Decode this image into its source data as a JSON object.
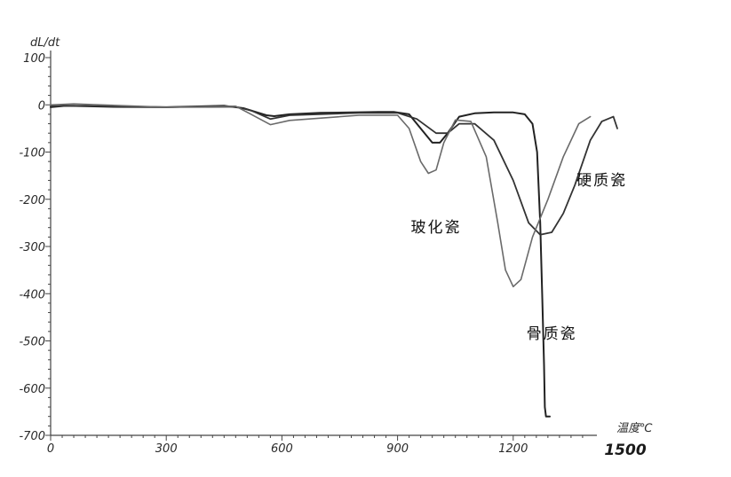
{
  "chart_data": {
    "type": "line",
    "ylabel": "dL/dt",
    "xlabel": "温度℃",
    "xlim": [
      0,
      1500
    ],
    "ylim": [
      -700,
      100
    ],
    "x_ticks": [
      "0",
      "300",
      "600",
      "900",
      "1200",
      "1500"
    ],
    "y_ticks": [
      "100",
      "0",
      "-100",
      "-200",
      "-300",
      "-400",
      "-500",
      "-600",
      "-700"
    ],
    "colors": {
      "axis": "#444444",
      "bone": "#222222",
      "hard": "#333333",
      "glass": "#6a6a6a"
    },
    "series": [
      {
        "name": "骨质瓷",
        "x": [
          0,
          40,
          150,
          300,
          450,
          500,
          560,
          580,
          620,
          700,
          850,
          890,
          930,
          960,
          990,
          1010,
          1030,
          1060,
          1100,
          1150,
          1200,
          1230,
          1250,
          1262,
          1270,
          1275,
          1280,
          1282,
          1285,
          1295
        ],
        "y": [
          -5,
          -2,
          -4,
          -5,
          -2,
          -7,
          -22,
          -24,
          -20,
          -17,
          -15,
          -15,
          -20,
          -50,
          -80,
          -80,
          -60,
          -25,
          -18,
          -16,
          -16,
          -20,
          -40,
          -100,
          -250,
          -400,
          -550,
          -640,
          -660,
          -660
        ]
      },
      {
        "name": "硬质瓷",
        "x": [
          0,
          60,
          300,
          480,
          520,
          570,
          620,
          800,
          900,
          950,
          1000,
          1030,
          1060,
          1100,
          1150,
          1200,
          1240,
          1270,
          1300,
          1330,
          1360,
          1400,
          1430,
          1460,
          1470
        ],
        "y": [
          -3,
          -2,
          -5,
          -4,
          -12,
          -30,
          -22,
          -17,
          -17,
          -30,
          -60,
          -60,
          -40,
          -40,
          -75,
          -160,
          -250,
          -275,
          -270,
          -230,
          -170,
          -75,
          -35,
          -25,
          -50
        ]
      },
      {
        "name": "玻化瓷",
        "x": [
          0,
          60,
          300,
          480,
          520,
          570,
          620,
          800,
          900,
          930,
          960,
          980,
          1000,
          1020,
          1050,
          1090,
          1130,
          1160,
          1180,
          1200,
          1220,
          1250,
          1290,
          1330,
          1370,
          1400
        ],
        "y": [
          0,
          2,
          -5,
          -3,
          -20,
          -42,
          -33,
          -22,
          -22,
          -50,
          -120,
          -145,
          -138,
          -80,
          -32,
          -35,
          -110,
          -250,
          -350,
          -385,
          -370,
          -280,
          -200,
          -110,
          -40,
          -25
        ]
      }
    ],
    "annotations": [
      {
        "text": "硬质瓷",
        "x": 1430,
        "y": -170
      },
      {
        "text": "玻化瓷",
        "x": 1000,
        "y": -270
      },
      {
        "text": "骨质瓷",
        "x": 1300,
        "y": -495
      }
    ]
  }
}
